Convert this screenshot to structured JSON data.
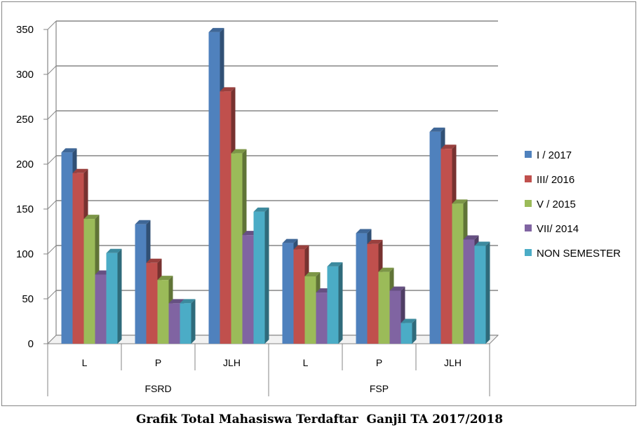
{
  "chart_data": {
    "type": "bar",
    "title": "Grafik Total Mahasiswa Terdaftar  Ganjil TA 2017/2018",
    "groups": [
      {
        "label": "FSRD",
        "categories": [
          "L",
          "P",
          "JLH"
        ]
      },
      {
        "label": "FSP",
        "categories": [
          "L",
          "P",
          "JLH"
        ]
      }
    ],
    "categories": [
      "L",
      "P",
      "JLH",
      "L",
      "P",
      "JLH"
    ],
    "series": [
      {
        "name": "I / 2017",
        "color": "#4f81bd",
        "values": [
          213,
          133,
          347,
          112,
          123,
          236
        ]
      },
      {
        "name": "III/ 2016",
        "color": "#c0504d",
        "values": [
          190,
          90,
          281,
          105,
          111,
          217
        ]
      },
      {
        "name": "V / 2015",
        "color": "#9bbb59",
        "values": [
          139,
          71,
          212,
          75,
          80,
          156
        ]
      },
      {
        "name": "VII/ 2014",
        "color": "#8064a2",
        "values": [
          77,
          45,
          121,
          57,
          59,
          116
        ]
      },
      {
        "name": "NON SEMESTER",
        "color": "#4bacc6",
        "values": [
          101,
          45,
          147,
          86,
          23,
          109
        ]
      }
    ],
    "ylim": [
      0,
      350
    ],
    "yticks": [
      0,
      50,
      100,
      150,
      200,
      250,
      300,
      350
    ],
    "grid": true,
    "legend_position": "right"
  }
}
